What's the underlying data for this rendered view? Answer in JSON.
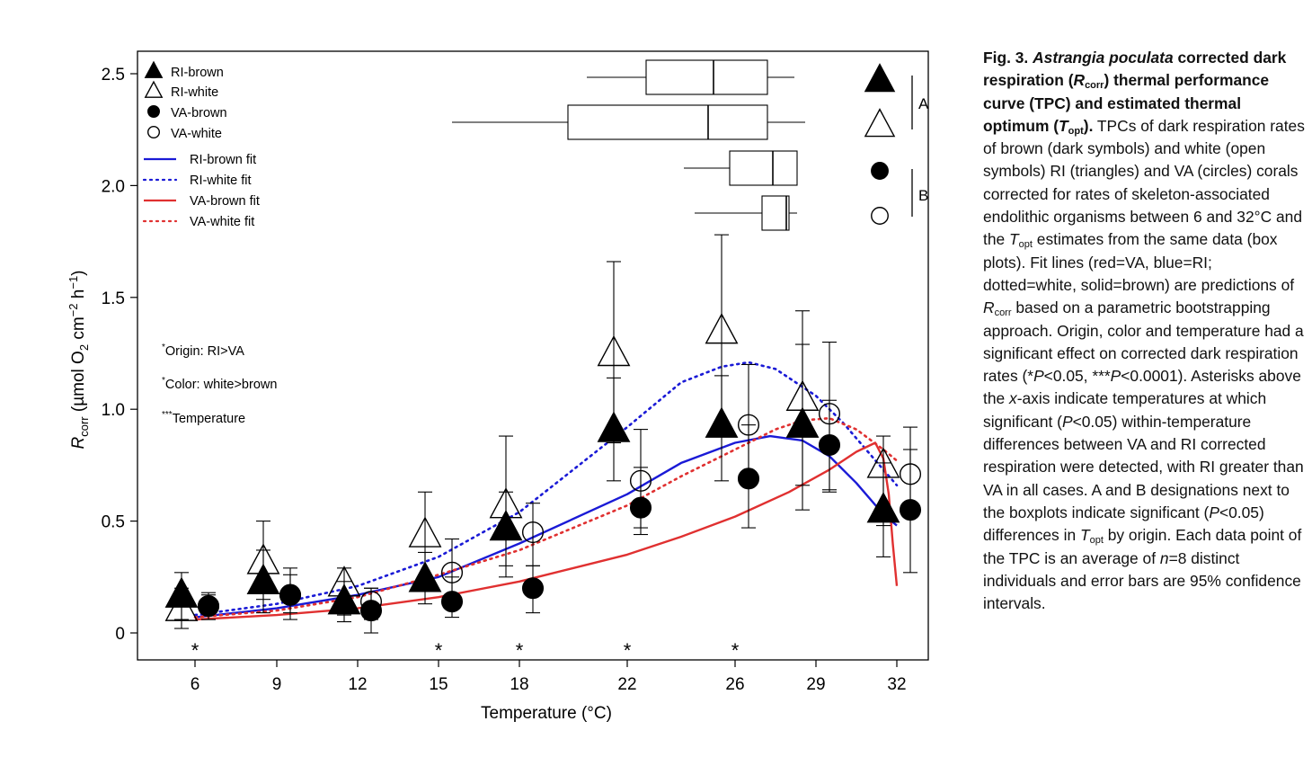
{
  "chart_data": {
    "type": "scatter",
    "xlabel": "Temperature (°C)",
    "ylabel": {
      "main": "R",
      "sub": "corr",
      "units_a": " (µmol O",
      "units_sub2": "2",
      "units_b": " cm",
      "units_sup": "−2",
      "units_c": " h",
      "units_sup2": "−1",
      "units_d": ")"
    },
    "temperatures": [
      6,
      9,
      12,
      15,
      18,
      22,
      26,
      29,
      32
    ],
    "tick_labels": [
      "6",
      "9",
      "12",
      "15",
      "18",
      "22",
      "26",
      "29",
      "32"
    ],
    "ylim": [
      0,
      2.5
    ],
    "yticks": [
      "0",
      "0.5",
      "1.0",
      "1.5",
      "2.0",
      "2.5"
    ],
    "grid": false,
    "legend_position": "top-left",
    "series": [
      {
        "name": "RI-brown",
        "marker": "triangle-filled",
        "offset": -0.45,
        "y": [
          0.17,
          0.23,
          0.14,
          0.24,
          0.47,
          0.91,
          0.93,
          0.93,
          0.55
        ],
        "lo": [
          0.06,
          0.09,
          0.05,
          0.13,
          0.25,
          0.68,
          0.68,
          0.55,
          0.34
        ],
        "hi": [
          0.27,
          0.37,
          0.23,
          0.36,
          0.63,
          1.14,
          1.15,
          1.29,
          0.76
        ]
      },
      {
        "name": "RI-white",
        "marker": "triangle-open",
        "offset": -0.45,
        "y": [
          0.11,
          0.32,
          0.22,
          0.44,
          0.57,
          1.25,
          1.35,
          1.05,
          0.75
        ],
        "lo": [
          0.02,
          0.15,
          0.08,
          0.23,
          0.3,
          0.85,
          0.9,
          0.66,
          0.48
        ],
        "hi": [
          0.2,
          0.5,
          0.29,
          0.63,
          0.88,
          1.66,
          1.78,
          1.44,
          0.88
        ]
      },
      {
        "name": "VA-brown",
        "marker": "circle-filled",
        "offset": 0.45,
        "y": [
          0.12,
          0.17,
          0.1,
          0.14,
          0.2,
          0.56,
          0.69,
          0.84,
          0.55
        ],
        "lo": [
          0.06,
          0.06,
          0.0,
          0.07,
          0.09,
          0.44,
          0.47,
          0.63,
          0.27
        ],
        "hi": [
          0.17,
          0.29,
          0.2,
          0.25,
          0.3,
          0.74,
          0.93,
          1.04,
          0.82
        ]
      },
      {
        "name": "VA-white",
        "marker": "circle-open",
        "offset": 0.45,
        "y": [
          0.12,
          0.17,
          0.14,
          0.27,
          0.45,
          0.68,
          0.93,
          0.98,
          0.71
        ],
        "lo": [
          0.06,
          0.09,
          0.06,
          0.14,
          0.3,
          0.47,
          0.7,
          0.64,
          0.52
        ],
        "hi": [
          0.18,
          0.26,
          0.2,
          0.42,
          0.58,
          0.91,
          1.2,
          1.3,
          0.92
        ]
      }
    ],
    "fits": [
      {
        "name": "RI-brown fit",
        "color": "#1a1ad6",
        "dash": "solid",
        "points": [
          [
            6,
            0.07
          ],
          [
            9,
            0.11
          ],
          [
            12,
            0.17
          ],
          [
            15,
            0.25
          ],
          [
            18,
            0.4
          ],
          [
            22,
            0.62
          ],
          [
            24,
            0.76
          ],
          [
            26,
            0.85
          ],
          [
            27.3,
            0.88
          ],
          [
            28.5,
            0.86
          ],
          [
            29.5,
            0.79
          ],
          [
            30.5,
            0.67
          ],
          [
            31.5,
            0.53
          ],
          [
            32,
            0.48
          ]
        ]
      },
      {
        "name": "RI-white fit",
        "color": "#1a1ad6",
        "dash": "dotted",
        "points": [
          [
            6,
            0.08
          ],
          [
            9,
            0.13
          ],
          [
            12,
            0.21
          ],
          [
            15,
            0.34
          ],
          [
            18,
            0.54
          ],
          [
            22,
            0.92
          ],
          [
            24,
            1.12
          ],
          [
            25.5,
            1.19
          ],
          [
            26.5,
            1.21
          ],
          [
            27.5,
            1.18
          ],
          [
            29,
            1.06
          ],
          [
            30,
            0.94
          ],
          [
            31,
            0.8
          ],
          [
            32,
            0.66
          ]
        ]
      },
      {
        "name": "VA-brown fit",
        "color": "#e03030",
        "dash": "solid",
        "points": [
          [
            6,
            0.06
          ],
          [
            9,
            0.08
          ],
          [
            12,
            0.11
          ],
          [
            15,
            0.16
          ],
          [
            18,
            0.23
          ],
          [
            22,
            0.35
          ],
          [
            24,
            0.43
          ],
          [
            26,
            0.52
          ],
          [
            28,
            0.63
          ],
          [
            29.5,
            0.73
          ],
          [
            30.5,
            0.81
          ],
          [
            31.2,
            0.85
          ],
          [
            31.5,
            0.78
          ],
          [
            31.7,
            0.62
          ],
          [
            31.85,
            0.4
          ],
          [
            32,
            0.21
          ]
        ]
      },
      {
        "name": "VA-white fit",
        "color": "#e03030",
        "dash": "dotted",
        "points": [
          [
            6,
            0.07
          ],
          [
            9,
            0.1
          ],
          [
            12,
            0.16
          ],
          [
            15,
            0.26
          ],
          [
            18,
            0.37
          ],
          [
            22,
            0.57
          ],
          [
            24,
            0.7
          ],
          [
            26,
            0.82
          ],
          [
            27.5,
            0.91
          ],
          [
            28.5,
            0.95
          ],
          [
            29.5,
            0.96
          ],
          [
            30.5,
            0.91
          ],
          [
            31.5,
            0.82
          ],
          [
            32,
            0.77
          ]
        ]
      }
    ],
    "topt_boxplots": [
      {
        "name": "RI-brown",
        "marker": "triangle-filled",
        "min": 20.5,
        "q1": 22.7,
        "median": 25.2,
        "q3": 27.2,
        "max": 28.2
      },
      {
        "name": "RI-white",
        "marker": "triangle-open",
        "min": 15.5,
        "q1": 19.8,
        "median": 25.0,
        "q3": 27.2,
        "max": 28.6
      },
      {
        "name": "VA-brown",
        "marker": "circle-filled",
        "min": 24.1,
        "q1": 25.8,
        "median": 27.4,
        "q3": 28.3,
        "max": 28.3
      },
      {
        "name": "VA-white",
        "marker": "circle-open",
        "min": 24.5,
        "q1": 27.0,
        "median": 27.9,
        "q3": 28.0,
        "max": 28.3
      }
    ],
    "group_letters": [
      "A",
      "B"
    ],
    "significance_markers": [
      6,
      15,
      18,
      22,
      26
    ],
    "significance_symbol": "*",
    "annotations": [
      {
        "sup": "*",
        "text": "Origin: RI>VA"
      },
      {
        "sup": "*",
        "text": "Color: white>brown"
      },
      {
        "sup": "***",
        "text": "Temperature"
      }
    ]
  },
  "caption": {
    "fig_label": "Fig. 3.",
    "title_italic": "Astrangia poculata",
    "title_a": " corrected dark respiration (",
    "title_r": "R",
    "title_rsub": "corr",
    "title_b": ") thermal performance curve (TPC) and estimated thermal optimum (",
    "title_t": "T",
    "title_tsub": "opt",
    "title_c": ").",
    "body_1": " TPCs of dark respiration rates of brown (dark symbols) and white (open symbols) RI (triangles) and VA (circles) corals corrected for rates of skeleton-associated endolithic organisms between 6 and 32°C and the ",
    "t": "T",
    "tsub": "opt",
    "body_2": " estimates from the same data (box plots). Fit lines (red=VA, blue=RI; dotted=white, solid=brown) are predictions of ",
    "r": "R",
    "rsub": "corr",
    "body_3": " based on a parametric bootstrapping approach. Origin, color and temperature had a significant effect on corrected dark respiration rates (*",
    "p1": "P",
    "body_4": "<0.05, ***",
    "p2": "P",
    "body_5": "<0.0001). Asterisks above the ",
    "xaxis": "x",
    "body_6": "-axis indicate temperatures at which significant (",
    "p3": "P",
    "body_7": "<0.05) within-temperature differences between VA and RI corrected respiration were detected, with RI greater than VA in all cases. A and B designations next to the boxplots indicate significant (",
    "p4": "P",
    "body_8": "<0.05) differences in ",
    "t2": "T",
    "t2sub": "opt",
    "body_9": " by origin. Each data point of the TPC is an average of ",
    "n": "n",
    "body_10": "=8 distinct individuals and error bars are 95% confidence intervals."
  }
}
